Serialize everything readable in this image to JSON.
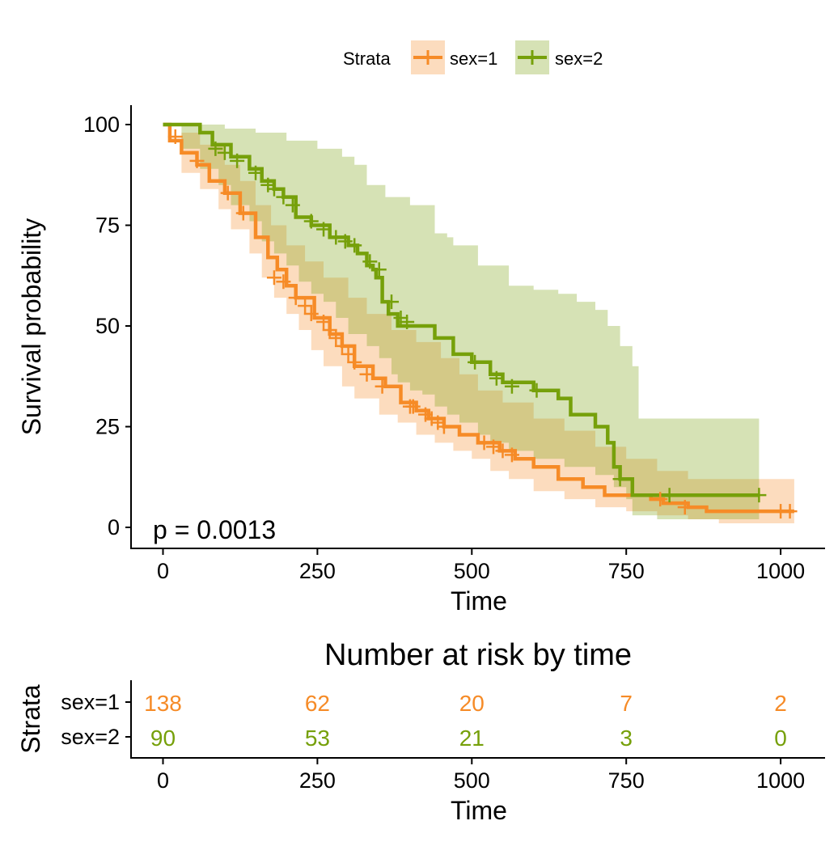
{
  "colors": {
    "sex1": "#F68B27",
    "sex2": "#76A00A",
    "axis": "#000000"
  },
  "legend": {
    "title": "Strata",
    "items": [
      "sex=1",
      "sex=2"
    ]
  },
  "pvalue": "p = 0.0013",
  "chart_data": {
    "type": "line",
    "subtype": "kaplan-meier-step",
    "xlabel": "Time",
    "ylabel": "Survival probability",
    "xlim": [
      0,
      1022
    ],
    "ylim": [
      0,
      100
    ],
    "xticks": [
      "0",
      "250",
      "500",
      "750",
      "1000"
    ],
    "yticks": [
      "0",
      "25",
      "50",
      "75",
      "100"
    ],
    "legend_position": "top",
    "series": [
      {
        "name": "sex=1",
        "steps": [
          [
            0,
            100
          ],
          [
            11,
            96
          ],
          [
            30,
            93
          ],
          [
            55,
            90
          ],
          [
            75,
            86
          ],
          [
            100,
            83
          ],
          [
            125,
            78
          ],
          [
            150,
            72
          ],
          [
            170,
            67
          ],
          [
            185,
            64
          ],
          [
            200,
            60
          ],
          [
            215,
            57
          ],
          [
            245,
            52
          ],
          [
            270,
            48
          ],
          [
            290,
            45
          ],
          [
            310,
            40
          ],
          [
            340,
            37
          ],
          [
            360,
            35
          ],
          [
            385,
            31
          ],
          [
            410,
            29
          ],
          [
            430,
            27
          ],
          [
            455,
            25
          ],
          [
            480,
            23
          ],
          [
            510,
            21
          ],
          [
            545,
            19
          ],
          [
            570,
            17
          ],
          [
            600,
            15
          ],
          [
            640,
            12
          ],
          [
            680,
            10
          ],
          [
            715,
            8
          ],
          [
            790,
            7
          ],
          [
            810,
            6
          ],
          [
            850,
            5
          ],
          [
            880,
            4
          ],
          [
            1022,
            4
          ]
        ],
        "ci_upper": [
          [
            0,
            100
          ],
          [
            30,
            98
          ],
          [
            60,
            95
          ],
          [
            100,
            90
          ],
          [
            125,
            86
          ],
          [
            150,
            80
          ],
          [
            175,
            75
          ],
          [
            200,
            70
          ],
          [
            230,
            66
          ],
          [
            260,
            62
          ],
          [
            300,
            57
          ],
          [
            330,
            53
          ],
          [
            370,
            49
          ],
          [
            410,
            46
          ],
          [
            450,
            42
          ],
          [
            480,
            38
          ],
          [
            510,
            34
          ],
          [
            550,
            31
          ],
          [
            600,
            27
          ],
          [
            650,
            24
          ],
          [
            700,
            20
          ],
          [
            750,
            17
          ],
          [
            800,
            14
          ],
          [
            850,
            12
          ],
          [
            880,
            12
          ],
          [
            1022,
            12
          ]
        ],
        "ci_lower": [
          [
            0,
            100
          ],
          [
            30,
            88
          ],
          [
            60,
            84
          ],
          [
            90,
            79
          ],
          [
            110,
            74
          ],
          [
            140,
            68
          ],
          [
            160,
            62
          ],
          [
            180,
            57
          ],
          [
            200,
            53
          ],
          [
            220,
            49
          ],
          [
            240,
            44
          ],
          [
            260,
            40
          ],
          [
            290,
            35
          ],
          [
            310,
            32
          ],
          [
            350,
            28
          ],
          [
            380,
            26
          ],
          [
            410,
            23
          ],
          [
            440,
            21
          ],
          [
            470,
            19
          ],
          [
            500,
            17
          ],
          [
            530,
            14
          ],
          [
            560,
            12
          ],
          [
            600,
            9
          ],
          [
            650,
            7
          ],
          [
            700,
            5
          ],
          [
            750,
            4
          ],
          [
            800,
            3
          ],
          [
            850,
            2
          ],
          [
            900,
            1
          ],
          [
            1022,
            1
          ]
        ],
        "censored": [
          [
            20,
            97
          ],
          [
            55,
            91
          ],
          [
            105,
            83
          ],
          [
            130,
            78
          ],
          [
            180,
            62
          ],
          [
            195,
            61
          ],
          [
            215,
            57
          ],
          [
            230,
            55
          ],
          [
            240,
            53
          ],
          [
            260,
            51
          ],
          [
            270,
            49
          ],
          [
            280,
            47
          ],
          [
            290,
            45
          ],
          [
            300,
            43
          ],
          [
            310,
            41
          ],
          [
            330,
            38
          ],
          [
            355,
            35
          ],
          [
            400,
            30
          ],
          [
            405,
            30
          ],
          [
            425,
            28
          ],
          [
            435,
            27
          ],
          [
            445,
            26
          ],
          [
            455,
            25
          ],
          [
            520,
            21
          ],
          [
            535,
            20
          ],
          [
            550,
            19
          ],
          [
            565,
            18
          ],
          [
            805,
            7
          ],
          [
            845,
            5
          ],
          [
            1000,
            4
          ],
          [
            1015,
            4
          ]
        ]
      },
      {
        "name": "sex=2",
        "steps": [
          [
            0,
            100
          ],
          [
            60,
            98
          ],
          [
            80,
            95
          ],
          [
            110,
            92
          ],
          [
            140,
            89
          ],
          [
            160,
            86
          ],
          [
            180,
            84
          ],
          [
            195,
            82
          ],
          [
            215,
            77
          ],
          [
            240,
            75
          ],
          [
            270,
            72
          ],
          [
            300,
            70
          ],
          [
            315,
            68
          ],
          [
            330,
            65
          ],
          [
            340,
            64
          ],
          [
            345,
            62
          ],
          [
            355,
            56
          ],
          [
            365,
            53
          ],
          [
            380,
            50
          ],
          [
            420,
            50
          ],
          [
            440,
            47
          ],
          [
            470,
            43
          ],
          [
            500,
            41
          ],
          [
            530,
            38
          ],
          [
            550,
            36
          ],
          [
            600,
            34
          ],
          [
            640,
            32
          ],
          [
            660,
            28
          ],
          [
            700,
            25
          ],
          [
            720,
            21
          ],
          [
            730,
            15
          ],
          [
            740,
            12
          ],
          [
            760,
            8
          ],
          [
            965,
            8
          ]
        ],
        "ci_upper": [
          [
            0,
            100
          ],
          [
            60,
            100
          ],
          [
            100,
            99
          ],
          [
            150,
            98
          ],
          [
            200,
            96
          ],
          [
            250,
            94
          ],
          [
            290,
            92
          ],
          [
            310,
            90
          ],
          [
            330,
            85
          ],
          [
            360,
            82
          ],
          [
            400,
            80
          ],
          [
            440,
            73
          ],
          [
            460,
            72
          ],
          [
            470,
            70
          ],
          [
            510,
            65
          ],
          [
            560,
            60
          ],
          [
            600,
            59
          ],
          [
            640,
            58
          ],
          [
            670,
            56
          ],
          [
            700,
            54
          ],
          [
            720,
            50
          ],
          [
            740,
            45
          ],
          [
            760,
            40
          ],
          [
            770,
            27
          ],
          [
            965,
            27
          ]
        ],
        "ci_lower": [
          [
            0,
            100
          ],
          [
            30,
            94
          ],
          [
            60,
            89
          ],
          [
            90,
            85
          ],
          [
            110,
            80
          ],
          [
            140,
            76
          ],
          [
            160,
            71
          ],
          [
            180,
            68
          ],
          [
            200,
            65
          ],
          [
            220,
            61
          ],
          [
            240,
            58
          ],
          [
            260,
            56
          ],
          [
            280,
            52
          ],
          [
            300,
            48
          ],
          [
            330,
            45
          ],
          [
            350,
            42
          ],
          [
            370,
            38
          ],
          [
            380,
            36
          ],
          [
            400,
            34
          ],
          [
            420,
            33
          ],
          [
            440,
            30
          ],
          [
            460,
            28
          ],
          [
            480,
            26
          ],
          [
            510,
            23
          ],
          [
            530,
            21
          ],
          [
            560,
            19
          ],
          [
            600,
            17
          ],
          [
            650,
            15
          ],
          [
            700,
            13
          ],
          [
            730,
            10
          ],
          [
            750,
            7
          ],
          [
            760,
            3
          ],
          [
            800,
            2
          ],
          [
            965,
            2
          ]
        ],
        "censored": [
          [
            85,
            94
          ],
          [
            100,
            93
          ],
          [
            120,
            91
          ],
          [
            150,
            88
          ],
          [
            170,
            85
          ],
          [
            180,
            84
          ],
          [
            195,
            82
          ],
          [
            210,
            80
          ],
          [
            240,
            76
          ],
          [
            260,
            74
          ],
          [
            280,
            72
          ],
          [
            295,
            71
          ],
          [
            310,
            70
          ],
          [
            335,
            66
          ],
          [
            350,
            64
          ],
          [
            370,
            56
          ],
          [
            385,
            52
          ],
          [
            395,
            51
          ],
          [
            505,
            41
          ],
          [
            540,
            37
          ],
          [
            565,
            35
          ],
          [
            605,
            34
          ],
          [
            740,
            12
          ],
          [
            820,
            8
          ],
          [
            965,
            8
          ]
        ]
      }
    ],
    "risk_table": {
      "title": "Number at risk by time",
      "ylabel": "Strata",
      "xlabel": "Time",
      "times": [
        0,
        250,
        500,
        750,
        1000
      ],
      "xticks": [
        "0",
        "250",
        "500",
        "750",
        "1000"
      ],
      "rows": [
        {
          "label": "sex=1",
          "values": [
            "138",
            "62",
            "20",
            "7",
            "2"
          ]
        },
        {
          "label": "sex=2",
          "values": [
            "90",
            "53",
            "21",
            "3",
            "0"
          ]
        }
      ]
    }
  }
}
